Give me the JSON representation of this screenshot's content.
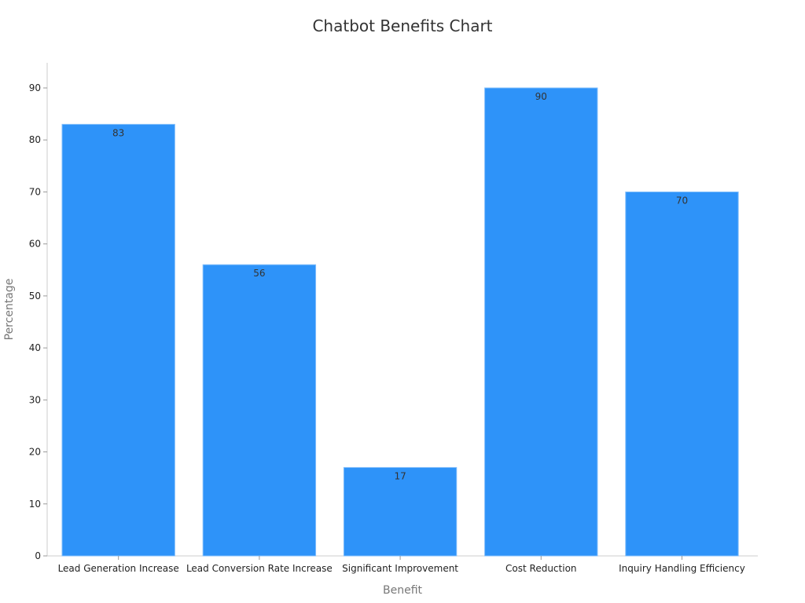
{
  "chart_data": {
    "type": "bar",
    "title": "Chatbot Benefits Chart",
    "xlabel": "Benefit",
    "ylabel": "Percentage",
    "categories": [
      "Lead Generation Increase",
      "Lead Conversion Rate Increase",
      "Significant Improvement",
      "Cost Reduction",
      "Inquiry Handling Efficiency"
    ],
    "values": [
      83,
      56,
      17,
      90,
      70
    ],
    "ylim": [
      0,
      95
    ],
    "yticks": [
      0,
      10,
      20,
      30,
      40,
      50,
      60,
      70,
      80,
      90
    ],
    "bar_color": "#2e93f9",
    "grid": false,
    "legend": "none"
  }
}
